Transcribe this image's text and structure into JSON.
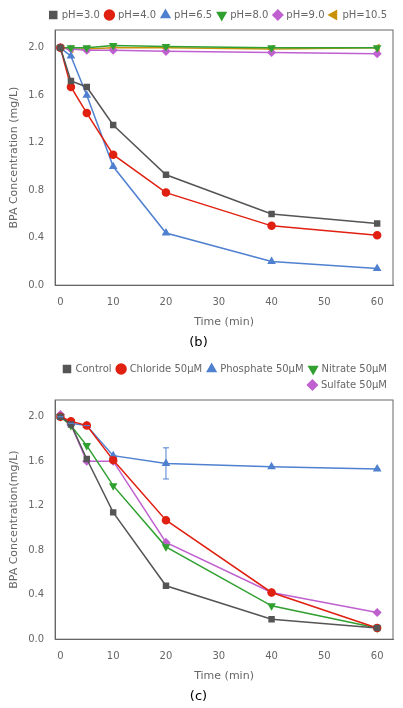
{
  "chart_data": [
    {
      "type": "line",
      "title": "(b)",
      "xlabel": "Time (min)",
      "ylabel": "BPA Concentration (mg/L)",
      "x": [
        0,
        2,
        5,
        10,
        20,
        40,
        60
      ],
      "xlim": [
        -1,
        63
      ],
      "ylim": [
        0.0,
        2.15
      ],
      "xticks": [
        0,
        10,
        20,
        30,
        40,
        50,
        60
      ],
      "yticks": [
        {
          "value": 0.0,
          "label": "0.0"
        },
        0.4,
        0.8,
        1.2,
        1.6,
        {
          "value": 2.0,
          "label": "2.0"
        }
      ],
      "grid": false,
      "legend": "upper right",
      "series": [
        {
          "name": "pH=3.0",
          "color": "#555555",
          "marker": "square",
          "values": [
            2.0,
            1.72,
            1.67,
            1.35,
            0.93,
            0.6,
            0.52
          ]
        },
        {
          "name": "pH=4.0",
          "color": "#e02010",
          "marker": "circle",
          "values": [
            2.0,
            1.67,
            1.45,
            1.1,
            0.78,
            0.5,
            0.42
          ]
        },
        {
          "name": "pH=6.5",
          "color": "#5080d0",
          "marker": "triangle-up",
          "values": [
            2.0,
            1.93,
            1.6,
            1.0,
            0.44,
            0.2,
            0.14
          ]
        },
        {
          "name": "pH=8.0",
          "color": "#30a030",
          "marker": "triangle-down",
          "values": [
            2.0,
            2.0,
            2.0,
            2.02,
            2.01,
            2.0,
            2.0
          ]
        },
        {
          "name": "pH=9.0",
          "color": "#c060d0",
          "marker": "diamond",
          "values": [
            2.0,
            1.99,
            1.98,
            1.98,
            1.97,
            1.96,
            1.95
          ]
        },
        {
          "name": "pH=10.5",
          "color": "#c8920a",
          "marker": "triangle-left",
          "values": [
            2.0,
            1.99,
            1.99,
            2.0,
            2.0,
            1.99,
            2.0
          ]
        }
      ]
    },
    {
      "type": "line",
      "title": "(c)",
      "xlabel": "Time (min)",
      "ylabel": "BPA Concentration(mg/L)",
      "x": [
        0,
        2,
        5,
        10,
        20,
        40,
        60
      ],
      "xlim": [
        -1,
        63
      ],
      "ylim": [
        0.0,
        2.15
      ],
      "xticks": [
        0,
        10,
        20,
        30,
        40,
        50,
        60
      ],
      "yticks": [
        {
          "value": 0.0,
          "label": "0.0"
        },
        0.4,
        0.8,
        1.2,
        1.6,
        {
          "value": 2.0,
          "label": "2.0"
        }
      ],
      "grid": false,
      "legend": "upper right",
      "series": [
        {
          "name": "Control",
          "color": "#555555",
          "marker": "square",
          "values": [
            2.0,
            1.93,
            1.62,
            1.14,
            0.48,
            0.18,
            0.1
          ]
        },
        {
          "name": "Chloride 50μM",
          "color": "#e02010",
          "marker": "circle",
          "values": [
            2.0,
            1.96,
            1.92,
            1.61,
            1.07,
            0.42,
            0.1
          ]
        },
        {
          "name": "Phosphate 50μM",
          "color": "#5080d0",
          "marker": "triangle-up",
          "values": [
            2.0,
            1.94,
            1.92,
            1.65,
            1.58,
            1.55,
            1.53
          ],
          "yerr": [
            0,
            0,
            0,
            0,
            0.14,
            0,
            0
          ]
        },
        {
          "name": "Nitrate 50μM",
          "color": "#30a030",
          "marker": "triangle-down",
          "values": [
            2.0,
            1.92,
            1.74,
            1.38,
            0.83,
            0.3,
            0.1
          ]
        },
        {
          "name": "Sulfate 50μM",
          "color": "#c060d0",
          "marker": "diamond",
          "values": [
            2.02,
            1.93,
            1.6,
            1.6,
            0.87,
            0.42,
            0.24
          ]
        }
      ]
    }
  ]
}
